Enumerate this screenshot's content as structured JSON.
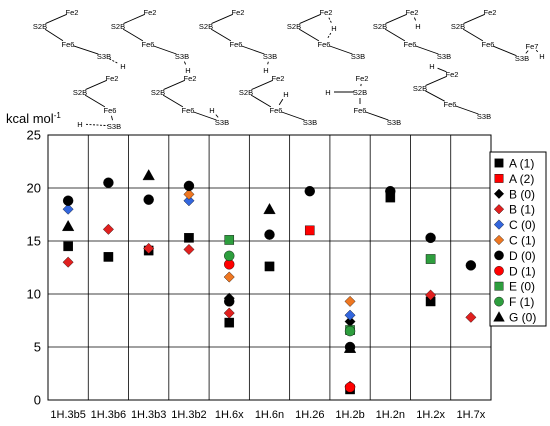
{
  "structures": [
    {
      "id": "1H.3b5",
      "labels": [
        "Fe2",
        "S2B",
        "Fe6",
        "S3B",
        "H"
      ]
    },
    {
      "id": "1H.3b6",
      "labels": [
        "Fe2",
        "S2B",
        "Fe6",
        "S3B",
        "H"
      ]
    },
    {
      "id": "1H.3b3",
      "labels": [
        "Fe2",
        "S2B",
        "Fe6",
        "S3B",
        "H"
      ]
    },
    {
      "id": "1H.6x",
      "labels": [
        "Fe2",
        "S2B",
        "H",
        "Fe6",
        "S3B"
      ]
    },
    {
      "id": "1H.2b",
      "labels": [
        "Fe2",
        "H",
        "S2B",
        "Fe6",
        "S3B"
      ]
    },
    {
      "id": "1H.7x",
      "labels": [
        "Fe2",
        "S2B",
        "Fe6",
        "Fe7",
        "S3B",
        "H"
      ]
    },
    {
      "id": "1H.3b2",
      "labels": [
        "Fe2",
        "S2B",
        "Fe6",
        "H",
        "S3B"
      ]
    },
    {
      "id": "1H.2x",
      "labels": [
        "Fe2",
        "S2B",
        "Fe6",
        "H",
        "S3B"
      ]
    },
    {
      "id": "1H.6n",
      "labels": [
        "Fe2",
        "S2B",
        "H",
        "Fe6",
        "S3B"
      ]
    },
    {
      "id": "1H.26",
      "labels": [
        "Fe2",
        "H",
        "S2B",
        "Fe6",
        "S3B"
      ]
    },
    {
      "id": "1H.2n",
      "labels": [
        "H",
        "Fe2",
        "S2B",
        "Fe6",
        "S3B"
      ]
    }
  ],
  "chart_data": {
    "type": "scatter",
    "ylabel": "kcal mol",
    "ylabel_sup": "-1",
    "ylim": [
      0,
      25
    ],
    "yticks": [
      0,
      5,
      10,
      15,
      20,
      25
    ],
    "grid": true,
    "legend_position": "right",
    "categories": [
      "1H.3b5",
      "1H.3b6",
      "1H.3b3",
      "1H.3b2",
      "1H.6x",
      "1H.6n",
      "1H.26",
      "1H.2b",
      "1H.2n",
      "1H.2x",
      "1H.7x"
    ],
    "series": [
      {
        "name": "A (1)",
        "marker": "square",
        "color": "#000000",
        "points": [
          [
            "1H.3b5",
            14.5
          ],
          [
            "1H.3b6",
            13.5
          ],
          [
            "1H.3b3",
            14.1
          ],
          [
            "1H.3b2",
            15.3
          ],
          [
            "1H.6x",
            7.3
          ],
          [
            "1H.6n",
            12.6
          ],
          [
            "1H.2b",
            1.0
          ],
          [
            "1H.2n",
            19.1
          ],
          [
            "1H.2x",
            9.3
          ]
        ]
      },
      {
        "name": "A (2)",
        "marker": "square",
        "color": "#ff0000",
        "points": [
          [
            "1H.26",
            16.0
          ]
        ]
      },
      {
        "name": "B (0)",
        "marker": "diamond",
        "color": "#000000",
        "points": [
          [
            "1H.6x",
            9.6
          ],
          [
            "1H.2b",
            7.4
          ]
        ]
      },
      {
        "name": "B (1)",
        "marker": "diamond",
        "color": "#e0201f",
        "points": [
          [
            "1H.3b5",
            13.0
          ],
          [
            "1H.3b6",
            16.1
          ],
          [
            "1H.3b3",
            14.3
          ],
          [
            "1H.3b2",
            14.2
          ],
          [
            "1H.6x",
            8.2
          ],
          [
            "1H.2b",
            1.3
          ],
          [
            "1H.2x",
            9.9
          ],
          [
            "1H.7x",
            7.8
          ]
        ]
      },
      {
        "name": "C (0)",
        "marker": "diamond",
        "color": "#3366dd",
        "points": [
          [
            "1H.3b5",
            18.0
          ],
          [
            "1H.3b2",
            18.8
          ],
          [
            "1H.2b",
            8.0
          ]
        ]
      },
      {
        "name": "C (1)",
        "marker": "diamond",
        "color": "#ee7722",
        "points": [
          [
            "1H.3b2",
            19.4
          ],
          [
            "1H.6x",
            11.6
          ],
          [
            "1H.2b",
            9.3
          ]
        ]
      },
      {
        "name": "D (0)",
        "marker": "circle",
        "color": "#000000",
        "points": [
          [
            "1H.3b5",
            18.8
          ],
          [
            "1H.3b6",
            20.5
          ],
          [
            "1H.3b3",
            18.9
          ],
          [
            "1H.3b2",
            20.2
          ],
          [
            "1H.6x",
            9.3
          ],
          [
            "1H.6n",
            15.6
          ],
          [
            "1H.26",
            19.7
          ],
          [
            "1H.2b",
            5.0
          ],
          [
            "1H.2n",
            19.7
          ],
          [
            "1H.2x",
            15.3
          ],
          [
            "1H.7x",
            12.7
          ]
        ]
      },
      {
        "name": "D (1)",
        "marker": "circle",
        "color": "#ff0000",
        "points": [
          [
            "1H.6x",
            12.8
          ],
          [
            "1H.2b",
            1.2
          ]
        ]
      },
      {
        "name": "E (0)",
        "marker": "square",
        "color": "#2e9e3e",
        "points": [
          [
            "1H.6x",
            15.1
          ],
          [
            "1H.2b",
            6.6
          ],
          [
            "1H.2x",
            13.3
          ]
        ]
      },
      {
        "name": "F (1)",
        "marker": "circle",
        "color": "#2e9e3e",
        "points": [
          [
            "1H.6x",
            13.6
          ],
          [
            "1H.2b",
            6.5
          ]
        ]
      },
      {
        "name": "G (0)",
        "marker": "triangle",
        "color": "#000000",
        "points": [
          [
            "1H.3b5",
            16.4
          ],
          [
            "1H.3b3",
            21.2
          ],
          [
            "1H.6n",
            18.0
          ],
          [
            "1H.2b",
            4.9
          ]
        ]
      }
    ]
  }
}
